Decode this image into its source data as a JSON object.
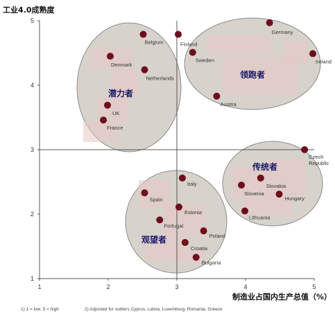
{
  "chart_data": {
    "type": "scatter",
    "ylabel": "工业4.0成熟度",
    "xlabel": "制造业占国内生产总值（%）",
    "xlim": [
      1,
      5
    ],
    "ylim": [
      1,
      5
    ],
    "x_ticks": [
      "1",
      "2",
      "3",
      "4",
      "5"
    ],
    "y_ticks": [
      "1",
      "2",
      "3",
      "4",
      "5"
    ],
    "dividers": {
      "x": 3,
      "y": 3
    },
    "grid": false,
    "points": [
      {
        "label": "Germany",
        "x": 4.35,
        "y": 4.97
      },
      {
        "label": "Ireland",
        "x": 4.98,
        "y": 4.49
      },
      {
        "label": "Finland",
        "x": 3.02,
        "y": 4.79
      },
      {
        "label": "Sweden",
        "x": 3.23,
        "y": 4.51
      },
      {
        "label": "Austria",
        "x": 3.58,
        "y": 3.83
      },
      {
        "label": "Belgium",
        "x": 2.51,
        "y": 4.79
      },
      {
        "label": "Denmark",
        "x": 2.03,
        "y": 4.45
      },
      {
        "label": "Netherlands",
        "x": 2.53,
        "y": 4.24
      },
      {
        "label": "UK",
        "x": 1.99,
        "y": 3.69
      },
      {
        "label": "France",
        "x": 1.93,
        "y": 3.46
      },
      {
        "label": "Czech Republic",
        "x": 4.86,
        "y": 3.0
      },
      {
        "label": "Slovakia",
        "x": 4.22,
        "y": 2.56
      },
      {
        "label": "Slovenia",
        "x": 3.94,
        "y": 2.45
      },
      {
        "label": "Hungary",
        "x": 4.49,
        "y": 2.31
      },
      {
        "label": "Lithuania",
        "x": 3.99,
        "y": 2.05
      },
      {
        "label": "Italy",
        "x": 3.08,
        "y": 2.56
      },
      {
        "label": "Spain",
        "x": 2.53,
        "y": 2.33
      },
      {
        "label": "Estonia",
        "x": 3.03,
        "y": 2.11
      },
      {
        "label": "Portugal",
        "x": 2.75,
        "y": 1.91
      },
      {
        "label": "Poland",
        "x": 3.39,
        "y": 1.74
      },
      {
        "label": "Croatia",
        "x": 3.12,
        "y": 1.56
      },
      {
        "label": "Bulgaria",
        "x": 3.28,
        "y": 1.33
      }
    ],
    "groups": [
      {
        "label": "潜力者"
      },
      {
        "label": "领跑者"
      },
      {
        "label": "传统者"
      },
      {
        "label": "观望者"
      }
    ],
    "notes": [
      "1) 1 = low,  5 = high",
      "2) Adjusted for outliers Cyprus, Latvia, Luxemburg, Romania, Greece"
    ],
    "colors": {
      "point": "#6e0d1e",
      "group_fill": "#d7d3cc",
      "group_stroke": "#8a8a8a",
      "pink_blocks": "#e8c7c4",
      "axis": "#555555"
    }
  }
}
